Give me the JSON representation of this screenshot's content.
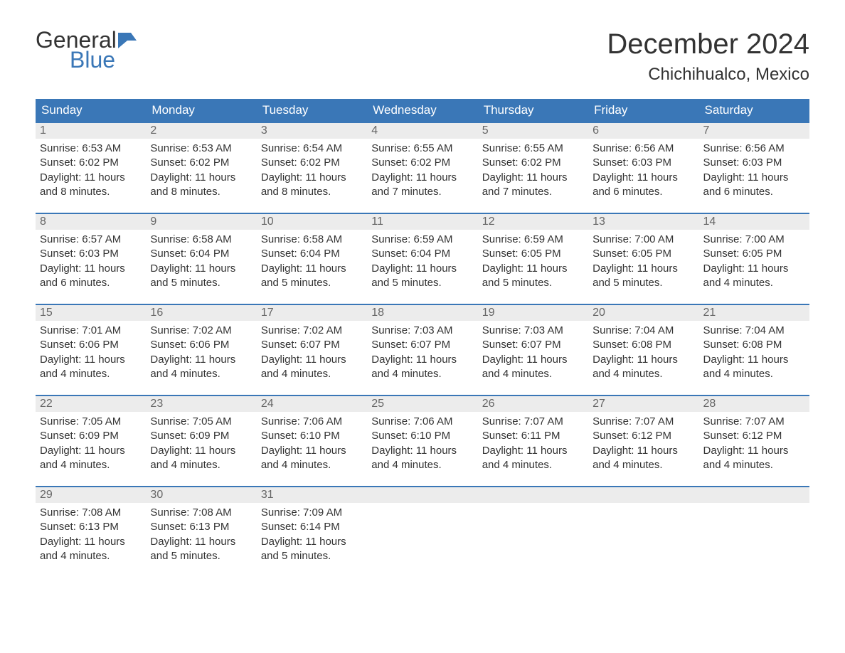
{
  "logo": {
    "top": "General",
    "bottom": "Blue",
    "icon_color": "#3a77b7"
  },
  "title": "December 2024",
  "location": "Chichihualco, Mexico",
  "colors": {
    "header_bg": "#3a77b7",
    "header_text": "#ffffff",
    "daynum_bg": "#ececec",
    "daynum_border": "#3a77b7",
    "daynum_text": "#666666",
    "body_text": "#333333",
    "page_bg": "#ffffff"
  },
  "weekdays": [
    "Sunday",
    "Monday",
    "Tuesday",
    "Wednesday",
    "Thursday",
    "Friday",
    "Saturday"
  ],
  "weeks": [
    [
      {
        "n": "1",
        "sunrise": "6:53 AM",
        "sunset": "6:02 PM",
        "daylight": "11 hours and 8 minutes."
      },
      {
        "n": "2",
        "sunrise": "6:53 AM",
        "sunset": "6:02 PM",
        "daylight": "11 hours and 8 minutes."
      },
      {
        "n": "3",
        "sunrise": "6:54 AM",
        "sunset": "6:02 PM",
        "daylight": "11 hours and 8 minutes."
      },
      {
        "n": "4",
        "sunrise": "6:55 AM",
        "sunset": "6:02 PM",
        "daylight": "11 hours and 7 minutes."
      },
      {
        "n": "5",
        "sunrise": "6:55 AM",
        "sunset": "6:02 PM",
        "daylight": "11 hours and 7 minutes."
      },
      {
        "n": "6",
        "sunrise": "6:56 AM",
        "sunset": "6:03 PM",
        "daylight": "11 hours and 6 minutes."
      },
      {
        "n": "7",
        "sunrise": "6:56 AM",
        "sunset": "6:03 PM",
        "daylight": "11 hours and 6 minutes."
      }
    ],
    [
      {
        "n": "8",
        "sunrise": "6:57 AM",
        "sunset": "6:03 PM",
        "daylight": "11 hours and 6 minutes."
      },
      {
        "n": "9",
        "sunrise": "6:58 AM",
        "sunset": "6:04 PM",
        "daylight": "11 hours and 5 minutes."
      },
      {
        "n": "10",
        "sunrise": "6:58 AM",
        "sunset": "6:04 PM",
        "daylight": "11 hours and 5 minutes."
      },
      {
        "n": "11",
        "sunrise": "6:59 AM",
        "sunset": "6:04 PM",
        "daylight": "11 hours and 5 minutes."
      },
      {
        "n": "12",
        "sunrise": "6:59 AM",
        "sunset": "6:05 PM",
        "daylight": "11 hours and 5 minutes."
      },
      {
        "n": "13",
        "sunrise": "7:00 AM",
        "sunset": "6:05 PM",
        "daylight": "11 hours and 5 minutes."
      },
      {
        "n": "14",
        "sunrise": "7:00 AM",
        "sunset": "6:05 PM",
        "daylight": "11 hours and 4 minutes."
      }
    ],
    [
      {
        "n": "15",
        "sunrise": "7:01 AM",
        "sunset": "6:06 PM",
        "daylight": "11 hours and 4 minutes."
      },
      {
        "n": "16",
        "sunrise": "7:02 AM",
        "sunset": "6:06 PM",
        "daylight": "11 hours and 4 minutes."
      },
      {
        "n": "17",
        "sunrise": "7:02 AM",
        "sunset": "6:07 PM",
        "daylight": "11 hours and 4 minutes."
      },
      {
        "n": "18",
        "sunrise": "7:03 AM",
        "sunset": "6:07 PM",
        "daylight": "11 hours and 4 minutes."
      },
      {
        "n": "19",
        "sunrise": "7:03 AM",
        "sunset": "6:07 PM",
        "daylight": "11 hours and 4 minutes."
      },
      {
        "n": "20",
        "sunrise": "7:04 AM",
        "sunset": "6:08 PM",
        "daylight": "11 hours and 4 minutes."
      },
      {
        "n": "21",
        "sunrise": "7:04 AM",
        "sunset": "6:08 PM",
        "daylight": "11 hours and 4 minutes."
      }
    ],
    [
      {
        "n": "22",
        "sunrise": "7:05 AM",
        "sunset": "6:09 PM",
        "daylight": "11 hours and 4 minutes."
      },
      {
        "n": "23",
        "sunrise": "7:05 AM",
        "sunset": "6:09 PM",
        "daylight": "11 hours and 4 minutes."
      },
      {
        "n": "24",
        "sunrise": "7:06 AM",
        "sunset": "6:10 PM",
        "daylight": "11 hours and 4 minutes."
      },
      {
        "n": "25",
        "sunrise": "7:06 AM",
        "sunset": "6:10 PM",
        "daylight": "11 hours and 4 minutes."
      },
      {
        "n": "26",
        "sunrise": "7:07 AM",
        "sunset": "6:11 PM",
        "daylight": "11 hours and 4 minutes."
      },
      {
        "n": "27",
        "sunrise": "7:07 AM",
        "sunset": "6:12 PM",
        "daylight": "11 hours and 4 minutes."
      },
      {
        "n": "28",
        "sunrise": "7:07 AM",
        "sunset": "6:12 PM",
        "daylight": "11 hours and 4 minutes."
      }
    ],
    [
      {
        "n": "29",
        "sunrise": "7:08 AM",
        "sunset": "6:13 PM",
        "daylight": "11 hours and 4 minutes."
      },
      {
        "n": "30",
        "sunrise": "7:08 AM",
        "sunset": "6:13 PM",
        "daylight": "11 hours and 5 minutes."
      },
      {
        "n": "31",
        "sunrise": "7:09 AM",
        "sunset": "6:14 PM",
        "daylight": "11 hours and 5 minutes."
      },
      null,
      null,
      null,
      null
    ]
  ],
  "labels": {
    "sunrise": "Sunrise: ",
    "sunset": "Sunset: ",
    "daylight": "Daylight: "
  }
}
